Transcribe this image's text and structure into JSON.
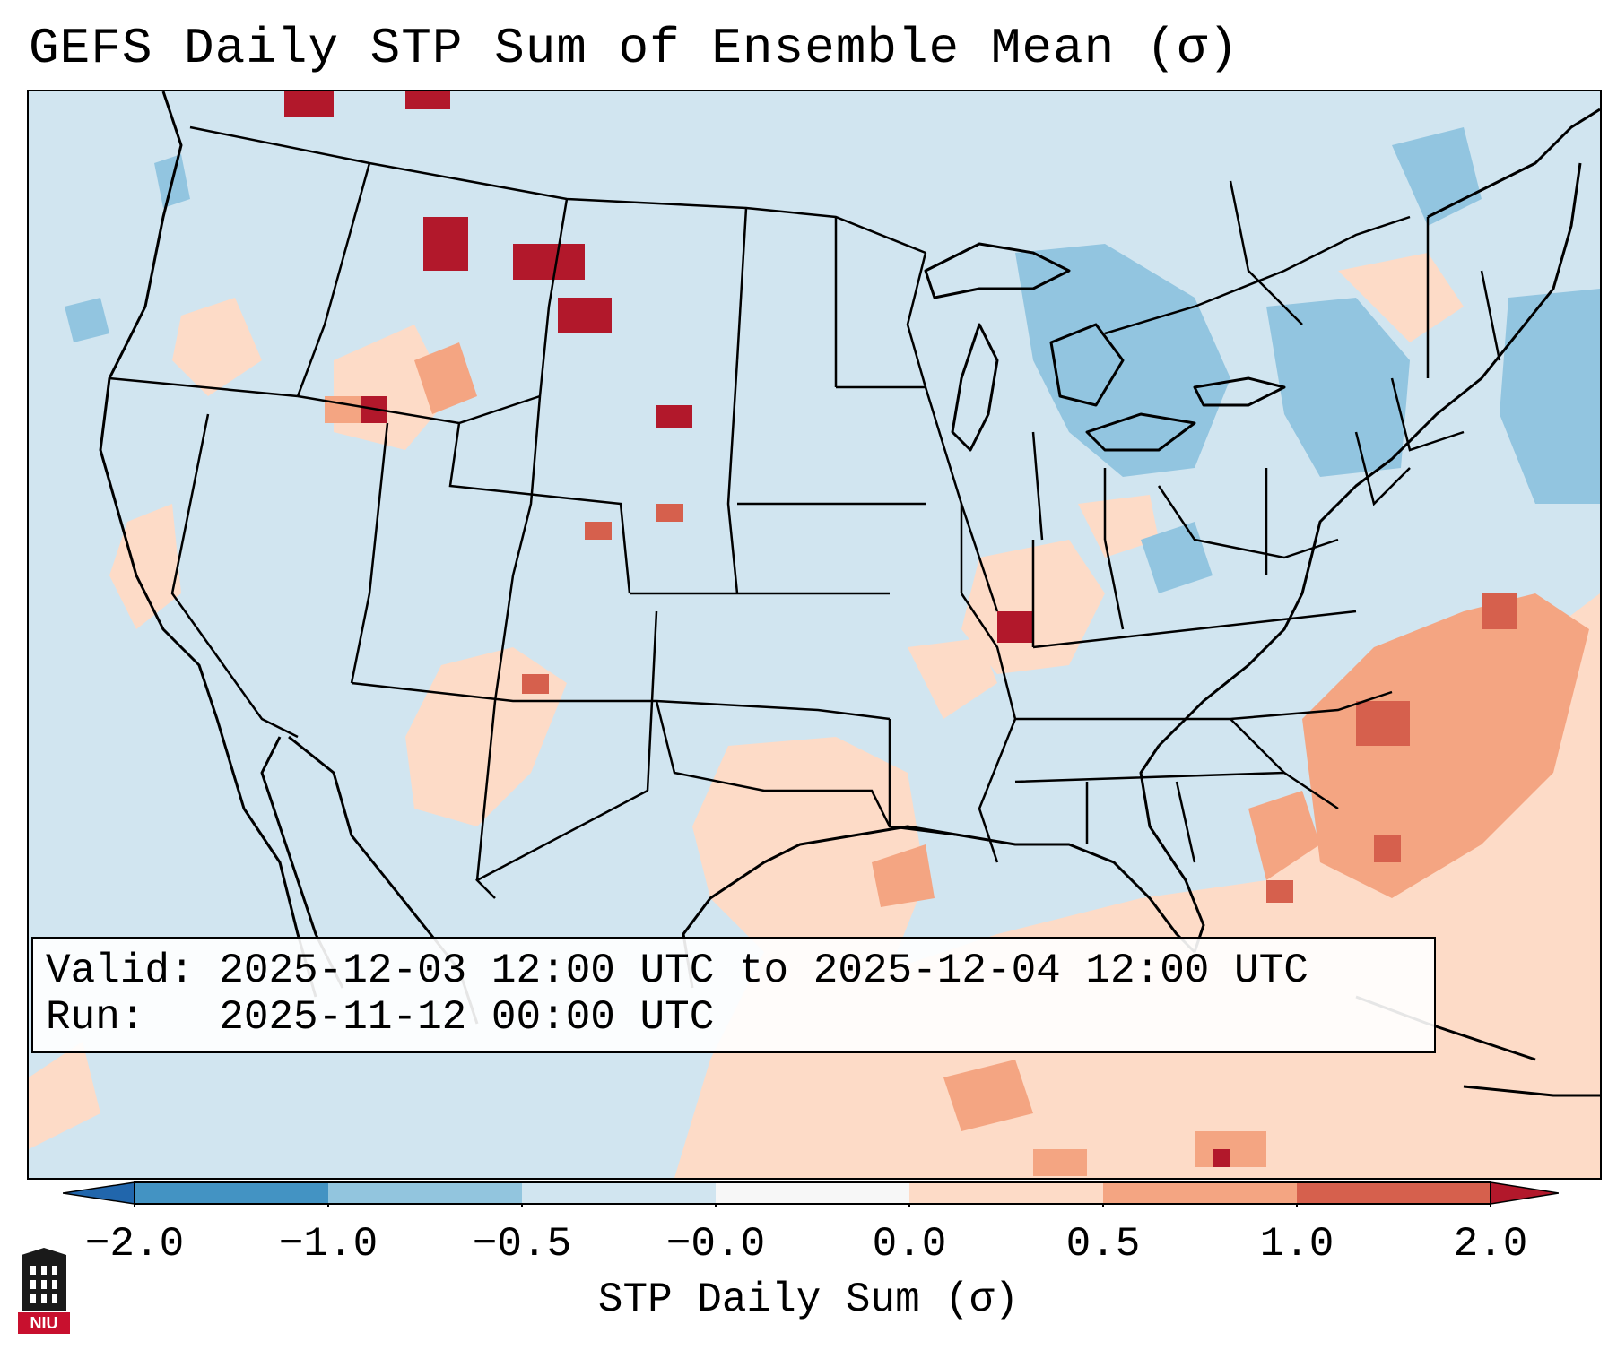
{
  "title": "GEFS Daily STP Sum of Ensemble Mean (σ)",
  "info_box": {
    "valid_line": "Valid: 2025-12-03 12:00 UTC to 2025-12-04 12:00 UTC",
    "run_line": "Run:   2025-11-12 00:00 UTC"
  },
  "colorbar": {
    "label": "STP Daily Sum (σ)",
    "ticks": [
      "−2.0",
      "−1.0",
      "−0.5",
      "−0.0",
      "0.0",
      "0.5",
      "1.0",
      "2.0"
    ],
    "colors": {
      "below_min": "#3a7fbe",
      "n2_n1": "#3f8fc6",
      "n1_n05": "#92c5e0",
      "n05_0": "#d1e5f0",
      "zero": "#f7f7f7",
      "p0_05": "#fddbc7",
      "p05_1": "#f4a582",
      "p1_2": "#d6604d",
      "above_max": "#b2182b"
    }
  },
  "map": {
    "background_color": "#d1e5f0",
    "line_color": "#000000"
  },
  "logo": {
    "text": "NIU",
    "color": "#c8102e"
  }
}
